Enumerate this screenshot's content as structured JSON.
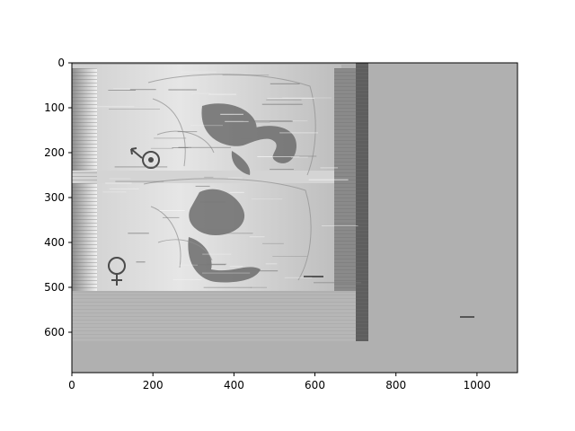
{
  "figure": {
    "type": "image-plot",
    "background_color": "#ffffff",
    "image_fill_color": "#b0b0b0",
    "xlim": [
      0,
      1100
    ],
    "ylim": [
      690,
      0
    ],
    "x_ticks": [
      "0",
      "200",
      "400",
      "600",
      "800",
      "1000"
    ],
    "y_ticks": [
      "0",
      "100",
      "200",
      "300",
      "400",
      "500",
      "600"
    ],
    "grid": false
  },
  "scan_content": {
    "description": "grayscale scanned anatomical illustration (two stacked views) with horizontal scan-line artifacts",
    "symbols": [
      "female-symbol",
      "male-symbol"
    ]
  }
}
